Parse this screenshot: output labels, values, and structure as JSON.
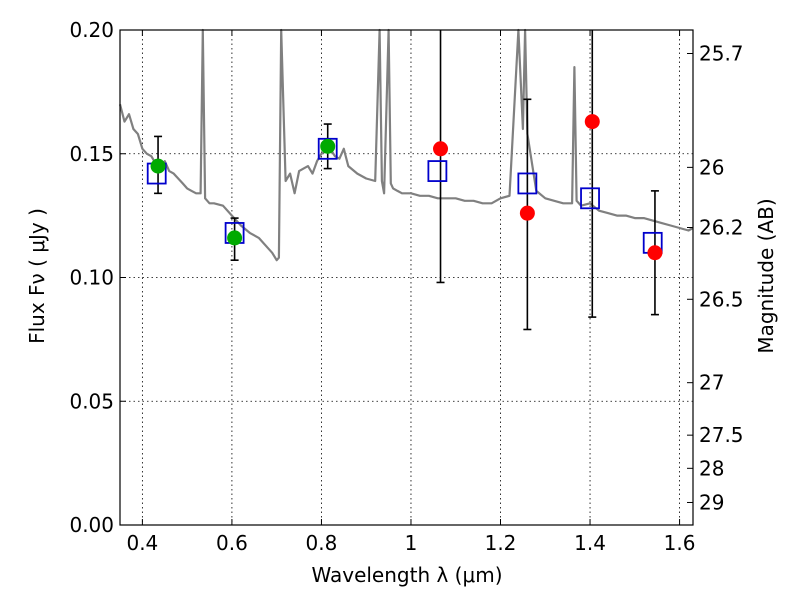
{
  "chart_data": {
    "type": "scatter",
    "xlabel": "Wavelength  λ (μm)",
    "ylabel": "Flux  Fν  ( μJy )",
    "y2label": "Magnitude (AB)",
    "xlim": [
      0.35,
      1.63
    ],
    "ylim": [
      0.0,
      0.2
    ],
    "x_ticks": [
      0.4,
      0.6,
      0.8,
      1.0,
      1.2,
      1.4,
      1.6
    ],
    "x_tick_labels": [
      "0.4",
      "0.6",
      "0.8",
      "1",
      "1.2",
      "1.4",
      "1.6"
    ],
    "y_ticks": [
      0.0,
      0.05,
      0.1,
      0.15,
      0.2
    ],
    "y_tick_labels": [
      "0.00",
      "0.05",
      "0.10",
      "0.15",
      "0.20"
    ],
    "y2_ticks": [
      {
        "label": "25.7",
        "flux": 0.1905
      },
      {
        "label": "26",
        "flux": 0.1445
      },
      {
        "label": "26.2",
        "flux": 0.1202
      },
      {
        "label": "26.5",
        "flux": 0.0912
      },
      {
        "label": "27",
        "flux": 0.0575
      },
      {
        "label": "27.5",
        "flux": 0.0363
      },
      {
        "label": "28",
        "flux": 0.0229
      },
      {
        "label": "29",
        "flux": 0.0091
      }
    ],
    "grid": true,
    "colors": {
      "model": "#808080",
      "model_points": "#0000cc",
      "detections": "#00aa00",
      "upper_points": "#ff0000",
      "errorbar": "#000000"
    },
    "series": [
      {
        "kind": "model_spectrum",
        "x": [
          0.35,
          0.36,
          0.37,
          0.38,
          0.39,
          0.4,
          0.41,
          0.42,
          0.43,
          0.44,
          0.45,
          0.46,
          0.47,
          0.48,
          0.49,
          0.5,
          0.51,
          0.52,
          0.53,
          0.535,
          0.54,
          0.55,
          0.56,
          0.58,
          0.6,
          0.62,
          0.64,
          0.66,
          0.68,
          0.69,
          0.7,
          0.705,
          0.71,
          0.72,
          0.73,
          0.74,
          0.75,
          0.76,
          0.77,
          0.78,
          0.79,
          0.8,
          0.81,
          0.82,
          0.83,
          0.84,
          0.85,
          0.86,
          0.88,
          0.9,
          0.92,
          0.93,
          0.935,
          0.94,
          0.95,
          0.955,
          0.96,
          0.97,
          0.98,
          1.0,
          1.02,
          1.04,
          1.06,
          1.08,
          1.1,
          1.12,
          1.14,
          1.16,
          1.18,
          1.2,
          1.22,
          1.24,
          1.25,
          1.255,
          1.26,
          1.28,
          1.3,
          1.32,
          1.34,
          1.36,
          1.365,
          1.37,
          1.38,
          1.4,
          1.42,
          1.44,
          1.46,
          1.48,
          1.5,
          1.52,
          1.54,
          1.56,
          1.58,
          1.6,
          1.62,
          1.63
        ],
        "y": [
          0.17,
          0.163,
          0.166,
          0.16,
          0.158,
          0.152,
          0.15,
          0.149,
          0.146,
          0.145,
          0.147,
          0.143,
          0.142,
          0.14,
          0.138,
          0.136,
          0.135,
          0.134,
          0.134,
          0.2,
          0.132,
          0.13,
          0.13,
          0.129,
          0.125,
          0.121,
          0.118,
          0.116,
          0.112,
          0.11,
          0.107,
          0.108,
          0.2,
          0.139,
          0.142,
          0.134,
          0.143,
          0.144,
          0.145,
          0.142,
          0.147,
          0.15,
          0.151,
          0.152,
          0.149,
          0.148,
          0.152,
          0.145,
          0.142,
          0.14,
          0.139,
          0.2,
          0.139,
          0.134,
          0.2,
          0.138,
          0.136,
          0.135,
          0.134,
          0.134,
          0.133,
          0.133,
          0.132,
          0.132,
          0.132,
          0.131,
          0.131,
          0.13,
          0.13,
          0.132,
          0.133,
          0.2,
          0.16,
          0.2,
          0.158,
          0.135,
          0.132,
          0.131,
          0.13,
          0.13,
          0.185,
          0.131,
          0.129,
          0.13,
          0.127,
          0.126,
          0.125,
          0.125,
          0.124,
          0.124,
          0.123,
          0.122,
          0.121,
          0.12,
          0.119,
          0.12
        ]
      },
      {
        "kind": "model_points",
        "marker": "open-square",
        "x": [
          0.432,
          0.606,
          0.814,
          1.059,
          1.26,
          1.4,
          1.54
        ],
        "y": [
          0.142,
          0.118,
          0.152,
          0.143,
          0.138,
          0.132,
          0.114
        ]
      },
      {
        "kind": "observed",
        "marker": "filled-circle",
        "x": [
          0.435,
          0.606,
          0.814,
          1.066,
          1.26,
          1.405,
          1.545
        ],
        "y": [
          0.145,
          0.116,
          0.153,
          0.152,
          0.126,
          0.163,
          0.11
        ],
        "yerr_low": [
          0.134,
          0.107,
          0.144,
          0.098,
          0.079,
          0.084,
          0.085
        ],
        "yerr_high": [
          0.157,
          0.124,
          0.162,
          0.2,
          0.172,
          0.2,
          0.135
        ],
        "color_keys": [
          "detections",
          "detections",
          "detections",
          "upper_points",
          "upper_points",
          "upper_points",
          "upper_points"
        ]
      }
    ]
  }
}
